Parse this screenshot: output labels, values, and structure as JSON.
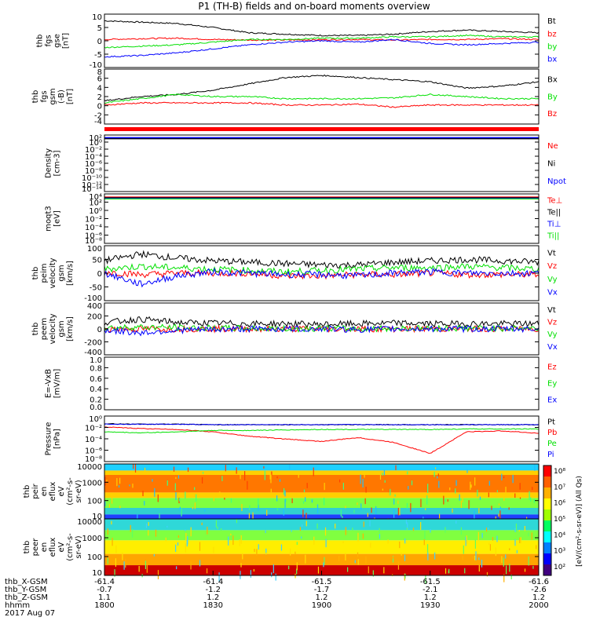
{
  "title": "P1 (TH-B) fields and on-board moments overview",
  "time_axis": {
    "rows": [
      {
        "label": "thb_X-GSM",
        "values": [
          "-61.4",
          "-61.4",
          "-61.5",
          "-61.5",
          "-61.6"
        ]
      },
      {
        "label": "thb_Y-GSM",
        "values": [
          "-0.7",
          "-1.2",
          "-1.7",
          "-2.1",
          "-2.6"
        ]
      },
      {
        "label": "thb_Z-GSM",
        "values": [
          "1.1",
          "1.2",
          "1.2",
          "1.2",
          "1.2"
        ]
      },
      {
        "label": "hhmm",
        "values": [
          "1800",
          "1830",
          "1900",
          "1930",
          "2000"
        ]
      }
    ],
    "date": "2017 Aug 07",
    "range": [
      "1800",
      "2000"
    ]
  },
  "colors": {
    "black": "#000000",
    "red": "#ff0000",
    "green": "#00e000",
    "blue": "#0000ff"
  },
  "chart_data": [
    {
      "type": "line",
      "ylabel": [
        "thb",
        "fgs",
        "gse",
        "[nT]"
      ],
      "yticks": [
        "10",
        "5",
        "0",
        "-5",
        "-10"
      ],
      "ylim": [
        -10,
        10
      ],
      "legend": [
        {
          "name": "Bt",
          "color": "#000000"
        },
        {
          "name": "bz",
          "color": "#ff0000"
        },
        {
          "name": "by",
          "color": "#00e000"
        },
        {
          "name": "bx",
          "color": "#0000ff"
        }
      ],
      "x": [
        0,
        10,
        20,
        30,
        40,
        50,
        60,
        70,
        80,
        90,
        100,
        110,
        120
      ],
      "series": [
        {
          "name": "Bt",
          "color": "#000000",
          "values": [
            7.5,
            7.0,
            6.5,
            5.0,
            3.0,
            2.5,
            2.0,
            2.0,
            2.5,
            3.5,
            4.0,
            3.5,
            3.0
          ]
        },
        {
          "name": "bz",
          "color": "#ff0000",
          "values": [
            0.5,
            0.8,
            1.0,
            0.5,
            0.3,
            0.3,
            0.4,
            0.5,
            0.3,
            0.5,
            0.5,
            0.8,
            0.5
          ]
        },
        {
          "name": "by",
          "color": "#00e000",
          "values": [
            -2.5,
            -2.0,
            -1.5,
            -0.5,
            0.5,
            0.5,
            1.0,
            1.0,
            1.5,
            1.5,
            2.0,
            1.5,
            1.5
          ]
        },
        {
          "name": "bx",
          "color": "#0000ff",
          "values": [
            -6.0,
            -5.5,
            -4.5,
            -3.0,
            -1.5,
            -0.5,
            0.0,
            -0.5,
            0.5,
            -1.0,
            -1.5,
            -1.0,
            -0.5
          ]
        }
      ]
    },
    {
      "type": "line",
      "ylabel": [
        "thb",
        "fgs",
        "gsm",
        "(-B)",
        "[nT]"
      ],
      "yticks": [
        "8",
        "6",
        "4",
        "2",
        "0",
        "-2",
        "-4"
      ],
      "ylim": [
        -5,
        8
      ],
      "legend": [
        {
          "name": "Bx",
          "color": "#000000"
        },
        {
          "name": "By",
          "color": "#00e000"
        },
        {
          "name": "Bz",
          "color": "#ff0000"
        }
      ],
      "x": [
        0,
        10,
        20,
        30,
        40,
        50,
        60,
        70,
        80,
        90,
        100,
        110,
        120
      ],
      "series": [
        {
          "name": "Bx",
          "color": "#000000",
          "values": [
            0.5,
            1.5,
            2.0,
            3.0,
            4.5,
            6.0,
            6.5,
            6.0,
            5.5,
            5.0,
            3.5,
            4.0,
            5.0
          ]
        },
        {
          "name": "By",
          "color": "#00e000",
          "values": [
            0.0,
            1.0,
            2.0,
            1.5,
            1.5,
            1.0,
            1.0,
            1.0,
            1.2,
            2.0,
            1.5,
            1.0,
            1.0
          ]
        },
        {
          "name": "Bz",
          "color": "#ff0000",
          "values": [
            -0.5,
            0.0,
            0.0,
            0.0,
            0.0,
            -0.5,
            -0.5,
            -0.3,
            -1.0,
            -0.5,
            -0.5,
            -0.5,
            -0.5
          ]
        }
      ]
    },
    {
      "type": "line",
      "ylabel": [
        "Density",
        "[cm-3]"
      ],
      "yticks": [
        "10²",
        "10⁰",
        "10⁻²",
        "10⁻⁴",
        "10⁻⁶",
        "10⁻⁸",
        "10⁻¹⁰",
        "10⁻¹²",
        "10⁻¹⁴"
      ],
      "yscale": "log",
      "legend": [
        {
          "name": "Ne",
          "color": "#ff0000"
        },
        {
          "name": "Ni",
          "color": "#000000"
        },
        {
          "name": "Npot",
          "color": "#0000ff"
        }
      ],
      "series": [
        {
          "name": "Ne",
          "color": "#ff0000",
          "value_level": 1.5
        },
        {
          "name": "Ni",
          "color": "#000000",
          "value_level": 1.2
        },
        {
          "name": "Npot",
          "color": "#0000ff",
          "value_level": 1.8
        }
      ]
    },
    {
      "type": "line",
      "ylabel": [
        "moqt3",
        "[eV]"
      ],
      "yticks": [
        "10⁴",
        "10²",
        "10⁰",
        "10⁻²",
        "10⁻⁴",
        "10⁻⁶",
        "10⁻⁸"
      ],
      "yscale": "log",
      "legend": [
        {
          "name": "Te⊥",
          "color": "#ff0000"
        },
        {
          "name": "Te||",
          "color": "#000000"
        },
        {
          "name": "Ti⊥",
          "color": "#0000ff"
        },
        {
          "name": "Ti||",
          "color": "#00e000"
        }
      ]
    },
    {
      "type": "line",
      "ylabel": [
        "thb",
        "peim",
        "velocity",
        "gsm",
        "[km/s]"
      ],
      "yticks": [
        "100",
        "50",
        "0",
        "-50",
        "-100"
      ],
      "ylim": [
        -100,
        100
      ],
      "legend": [
        {
          "name": "Vt",
          "color": "#000000"
        },
        {
          "name": "Vz",
          "color": "#ff0000"
        },
        {
          "name": "Vy",
          "color": "#00e000"
        },
        {
          "name": "Vx",
          "color": "#0000ff"
        }
      ],
      "x": [
        0,
        10,
        20,
        30,
        40,
        50,
        60,
        70,
        80,
        90,
        100,
        110,
        120
      ],
      "series": [
        {
          "name": "Vt",
          "color": "#000000",
          "values": [
            45,
            70,
            55,
            45,
            40,
            35,
            30,
            30,
            40,
            45,
            50,
            45,
            40
          ]
        },
        {
          "name": "Vz",
          "color": "#ff0000",
          "values": [
            5,
            -5,
            0,
            0,
            0,
            -10,
            -10,
            -5,
            -5,
            0,
            -5,
            -5,
            -5
          ]
        },
        {
          "name": "Vy",
          "color": "#00e000",
          "values": [
            15,
            25,
            20,
            15,
            10,
            5,
            10,
            15,
            20,
            20,
            25,
            20,
            15
          ]
        },
        {
          "name": "Vx",
          "color": "#0000ff",
          "values": [
            0,
            -40,
            -10,
            5,
            0,
            -5,
            -5,
            -10,
            0,
            5,
            0,
            0,
            0
          ]
        }
      ]
    },
    {
      "type": "line",
      "ylabel": [
        "thb",
        "peem",
        "velocity",
        "gsm",
        "[km/s]"
      ],
      "yticks": [
        "400",
        "200",
        "0",
        "-200",
        "-400"
      ],
      "ylim": [
        -400,
        400
      ],
      "legend": [
        {
          "name": "Vt",
          "color": "#000000"
        },
        {
          "name": "Vz",
          "color": "#ff0000"
        },
        {
          "name": "Vy",
          "color": "#00e000"
        },
        {
          "name": "Vx",
          "color": "#0000ff"
        }
      ],
      "x": [
        0,
        10,
        20,
        30,
        40,
        50,
        60,
        70,
        80,
        90,
        100,
        110,
        120
      ],
      "series": [
        {
          "name": "Vt",
          "color": "#000000",
          "values": [
            100,
            150,
            100,
            90,
            80,
            80,
            70,
            80,
            90,
            80,
            80,
            80,
            80
          ]
        },
        {
          "name": "Vz",
          "color": "#ff0000",
          "values": [
            0,
            0,
            0,
            0,
            0,
            0,
            0,
            0,
            0,
            0,
            0,
            0,
            0
          ]
        },
        {
          "name": "Vy",
          "color": "#00e000",
          "values": [
            20,
            30,
            20,
            10,
            10,
            0,
            10,
            0,
            10,
            10,
            10,
            10,
            10
          ]
        },
        {
          "name": "Vx",
          "color": "#0000ff",
          "values": [
            -20,
            -60,
            -20,
            -10,
            0,
            0,
            0,
            -10,
            0,
            0,
            0,
            0,
            0
          ]
        }
      ]
    },
    {
      "type": "line",
      "ylabel": [
        "E=-VxB",
        "[mV/m]"
      ],
      "yticks": [
        "1.0",
        "0.8",
        "0.6",
        "0.4",
        "0.2",
        "0.0"
      ],
      "ylim": [
        0,
        1
      ],
      "legend": [
        {
          "name": "Ez",
          "color": "#ff0000"
        },
        {
          "name": "Ey",
          "color": "#00e000"
        },
        {
          "name": "Ex",
          "color": "#0000ff"
        }
      ]
    },
    {
      "type": "line",
      "ylabel": [
        "Pressure",
        "[nPa]"
      ],
      "yticks": [
        "10⁰",
        "10⁻²",
        "10⁻⁴",
        "10⁻⁶",
        "10⁻⁸"
      ],
      "yscale": "log",
      "legend": [
        {
          "name": "Pt",
          "color": "#000000"
        },
        {
          "name": "Pb",
          "color": "#ff0000"
        },
        {
          "name": "Pe",
          "color": "#00e000"
        },
        {
          "name": "Pi",
          "color": "#0000ff"
        }
      ],
      "x": [
        0,
        10,
        20,
        30,
        40,
        50,
        60,
        70,
        80,
        90,
        100,
        110,
        120
      ],
      "series": [
        {
          "name": "Pt",
          "color": "#000000",
          "log_values": [
            -0.6,
            -0.7,
            -0.7,
            -0.8,
            -0.8,
            -0.8,
            -0.8,
            -0.8,
            -0.8,
            -0.8,
            -0.8,
            -0.8,
            -0.8
          ]
        },
        {
          "name": "Pb",
          "color": "#ff0000",
          "log_values": [
            -1.3,
            -1.6,
            -1.8,
            -2.3,
            -3.2,
            -3.8,
            -4.3,
            -3.5,
            -4.5,
            -6.8,
            -2.3,
            -2.1,
            -2.6
          ]
        },
        {
          "name": "Pe",
          "color": "#00e000",
          "log_values": [
            -2.3,
            -2.5,
            -2.3,
            -2.0,
            -2.0,
            -1.9,
            -1.8,
            -1.8,
            -1.8,
            -1.8,
            -1.7,
            -1.7,
            -1.7
          ]
        },
        {
          "name": "Pi",
          "color": "#0000ff",
          "log_values": [
            -0.7,
            -0.7,
            -0.7,
            -0.8,
            -0.8,
            -0.8,
            -0.8,
            -0.8,
            -0.8,
            -0.8,
            -0.8,
            -0.8,
            -0.8
          ]
        }
      ]
    },
    {
      "type": "heatmap",
      "ylabel": [
        "thb",
        "peir",
        "en",
        "eflux",
        "eV",
        "(cm²-s-",
        "sr-eV)"
      ],
      "yticks": [
        "10000",
        "1000",
        "100",
        "10"
      ]
    },
    {
      "type": "heatmap",
      "ylabel": [
        "thb",
        "peer",
        "en",
        "eflux",
        "eV",
        "(cm²-s-",
        "sr-eV)"
      ],
      "yticks": [
        "10000",
        "1000",
        "100",
        "10"
      ]
    }
  ],
  "colorbar": {
    "ticks": [
      "10⁸",
      "10⁷",
      "10⁶",
      "10⁵",
      "10⁴",
      "10³",
      "10²"
    ],
    "label": "[eV/(cm²-s-sr-eV)] (All Qs)"
  }
}
